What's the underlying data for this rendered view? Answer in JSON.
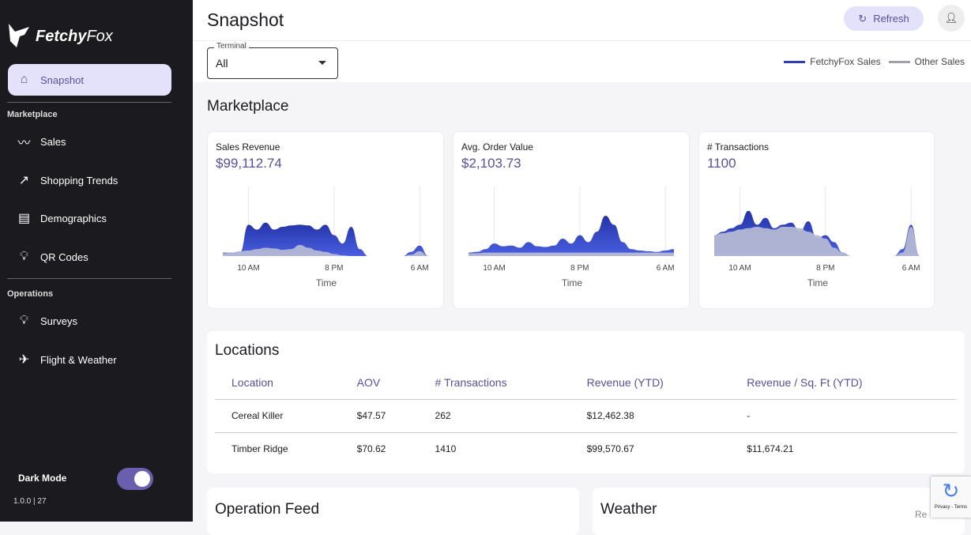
{
  "brand": {
    "name_bold": "Fetchy",
    "name_light": "Fox"
  },
  "sidebar": {
    "active": {
      "label": "Snapshot",
      "icon": "home-icon"
    },
    "sections": [
      {
        "label": "Marketplace",
        "items": [
          {
            "label": "Sales",
            "icon": "trend-icon"
          },
          {
            "label": "Shopping Trends",
            "icon": "trending-up-icon"
          },
          {
            "label": "Demographics",
            "icon": "document-icon"
          },
          {
            "label": "QR Codes",
            "icon": "lightbulb-icon"
          }
        ]
      },
      {
        "label": "Operations",
        "items": [
          {
            "label": "Surveys",
            "icon": "lightbulb-icon"
          },
          {
            "label": "Flight & Weather",
            "icon": "airplane-icon"
          }
        ]
      }
    ],
    "dark_mode_label": "Dark Mode",
    "dark_mode": true,
    "version": "1.0.0 | 27"
  },
  "header": {
    "title": "Snapshot",
    "refresh_label": "Refresh"
  },
  "filter": {
    "label": "Terminal",
    "value": "All"
  },
  "legend": [
    {
      "label": "FetchyFox Sales",
      "color": "#2f3fb3"
    },
    {
      "label": "Other Sales",
      "color": "#a0a0a8"
    }
  ],
  "marketplace": {
    "title": "Marketplace"
  },
  "colors": {
    "accent": "#5a4f98",
    "fetchy": "#2f3fb3",
    "other": "#b4b8d4"
  },
  "chart_data": [
    {
      "type": "area",
      "title": "Sales Revenue",
      "value": "$99,112.74",
      "xlabel": "Time",
      "xticks": [
        "10 AM",
        "8 PM",
        "6 AM"
      ],
      "x": [
        "7 AM",
        "8 AM",
        "9 AM",
        "10 AM",
        "11 AM",
        "12 PM",
        "1 PM",
        "2 PM",
        "3 PM",
        "4 PM",
        "5 PM",
        "6 PM",
        "7 PM",
        "8 PM",
        "9 PM",
        "10 PM",
        "11 PM",
        "12 AM",
        "1 AM",
        "2 AM",
        "3 AM",
        "4 AM",
        "5 AM",
        "6 AM",
        "7 AM"
      ],
      "series": [
        {
          "name": "FetchyFox Sales",
          "values": [
            0.05,
            0.05,
            0.05,
            0.45,
            0.38,
            0.48,
            0.38,
            0.42,
            0.44,
            0.45,
            0.44,
            0.38,
            0.45,
            0.3,
            0.18,
            0.42,
            0.1,
            0,
            0,
            0,
            0,
            0,
            0.06,
            0.15,
            0
          ]
        },
        {
          "name": "Other Sales",
          "values": [
            0.04,
            0.05,
            0.07,
            0.08,
            0.1,
            0.12,
            0.11,
            0.09,
            0.1,
            0.16,
            0.12,
            0.08,
            0.06,
            0.03,
            0.01,
            0,
            0,
            0,
            0,
            0,
            0,
            0,
            0.02,
            0.07,
            0
          ]
        }
      ]
    },
    {
      "type": "area",
      "title": "Avg. Order Value",
      "value": "$2,103.73",
      "xlabel": "Time",
      "xticks": [
        "10 AM",
        "8 PM",
        "6 AM"
      ],
      "x": [
        "7 AM",
        "8 AM",
        "9 AM",
        "10 AM",
        "11 AM",
        "12 PM",
        "1 PM",
        "2 PM",
        "3 PM",
        "4 PM",
        "5 PM",
        "6 PM",
        "7 PM",
        "8 PM",
        "9 PM",
        "10 PM",
        "11 PM",
        "12 AM",
        "1 AM",
        "2 AM",
        "3 AM",
        "4 AM",
        "5 AM",
        "6 AM",
        "7 AM"
      ],
      "series": [
        {
          "name": "FetchyFox Sales",
          "values": [
            0.05,
            0.06,
            0.1,
            0.18,
            0.14,
            0.15,
            0.12,
            0.2,
            0.14,
            0.13,
            0.15,
            0.25,
            0.18,
            0.3,
            0.2,
            0.35,
            0.58,
            0.45,
            0.2,
            0.1,
            0.08,
            0.07,
            0.06,
            0.08,
            0.1
          ]
        },
        {
          "name": "Other Sales",
          "values": [
            0.04,
            0.04,
            0.05,
            0.05,
            0.05,
            0.05,
            0.05,
            0.05,
            0.05,
            0.05,
            0.05,
            0.05,
            0.05,
            0.05,
            0.05,
            0.05,
            0.05,
            0.05,
            0.05,
            0.05,
            0.05,
            0.05,
            0.05,
            0.05,
            0.05
          ]
        }
      ]
    },
    {
      "type": "area",
      "title": "# Transactions",
      "value": "1100",
      "xlabel": "Time",
      "xticks": [
        "10 AM",
        "8 PM",
        "6 AM"
      ],
      "x": [
        "7 AM",
        "8 AM",
        "9 AM",
        "10 AM",
        "11 AM",
        "12 PM",
        "1 PM",
        "2 PM",
        "3 PM",
        "4 PM",
        "5 PM",
        "6 PM",
        "7 PM",
        "8 PM",
        "9 PM",
        "10 PM",
        "11 PM",
        "12 AM",
        "1 AM",
        "2 AM",
        "3 AM",
        "4 AM",
        "5 AM",
        "6 AM",
        "7 AM"
      ],
      "series": [
        {
          "name": "FetchyFox Sales",
          "values": [
            0.3,
            0.35,
            0.4,
            0.45,
            0.65,
            0.45,
            0.55,
            0.4,
            0.45,
            0.48,
            0.35,
            0.5,
            0.25,
            0.3,
            0.2,
            0.05,
            0,
            0,
            0,
            0,
            0,
            0,
            0.1,
            0.45,
            0
          ]
        },
        {
          "name": "Other Sales",
          "values": [
            0.3,
            0.33,
            0.35,
            0.38,
            0.4,
            0.42,
            0.4,
            0.38,
            0.42,
            0.42,
            0.4,
            0.35,
            0.3,
            0.25,
            0.12,
            0.05,
            0,
            0,
            0,
            0,
            0,
            0,
            0.05,
            0.42,
            0
          ]
        }
      ]
    }
  ],
  "locations": {
    "title": "Locations",
    "columns": [
      "Location",
      "AOV",
      "# Transactions",
      "Revenue (YTD)",
      "Revenue / Sq. Ft (YTD)"
    ],
    "rows": [
      [
        "Cereal Killer",
        "$47.57",
        "262",
        "$12,462.38",
        "-"
      ],
      [
        "Timber Ridge",
        "$70.62",
        "1410",
        "$99,570.67",
        "$11,674.21"
      ]
    ]
  },
  "operation_feed": {
    "title": "Operation Feed"
  },
  "weather": {
    "title": "Weather",
    "partial_text": "Re"
  },
  "recaptcha": {
    "text": "Privacy - Terms"
  }
}
